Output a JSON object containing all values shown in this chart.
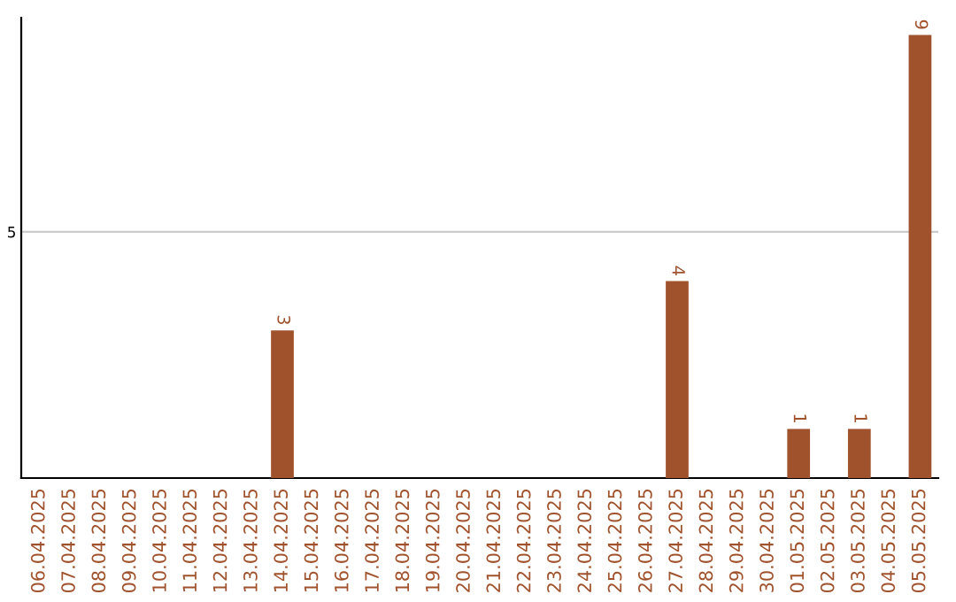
{
  "chart_data": {
    "type": "bar",
    "categories": [
      "06.04.2025",
      "07.04.2025",
      "08.04.2025",
      "09.04.2025",
      "10.04.2025",
      "11.04.2025",
      "12.04.2025",
      "13.04.2025",
      "14.04.2025",
      "15.04.2025",
      "16.04.2025",
      "17.04.2025",
      "18.04.2025",
      "19.04.2025",
      "20.04.2025",
      "21.04.2025",
      "22.04.2025",
      "23.04.2025",
      "24.04.2025",
      "25.04.2025",
      "26.04.2025",
      "27.04.2025",
      "28.04.2025",
      "29.04.2025",
      "30.04.2025",
      "01.05.2025",
      "02.05.2025",
      "03.05.2025",
      "04.05.2025",
      "05.05.2025"
    ],
    "values": [
      0,
      0,
      0,
      0,
      0,
      0,
      0,
      0,
      3,
      0,
      0,
      0,
      0,
      0,
      0,
      0,
      0,
      0,
      0,
      0,
      0,
      4,
      0,
      0,
      0,
      1,
      0,
      1,
      0,
      9
    ],
    "value_labels": [
      null,
      null,
      null,
      null,
      null,
      null,
      null,
      null,
      "3",
      null,
      null,
      null,
      null,
      null,
      null,
      null,
      null,
      null,
      null,
      null,
      null,
      "4",
      null,
      null,
      null,
      "1",
      null,
      "1",
      null,
      "9"
    ],
    "color": "#a0522d",
    "ylim": [
      0,
      9.35
    ],
    "yticks": [
      5
    ],
    "grid": "y"
  }
}
